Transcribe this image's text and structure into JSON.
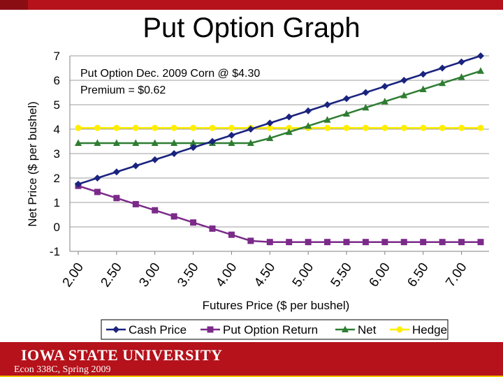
{
  "slide": {
    "title": "Put Option Graph",
    "university": "IOWA STATE UNIVERSITY",
    "course": "Econ 338C, Spring 2009",
    "brand_color": "#b5121b",
    "accent_color": "#f2c400"
  },
  "chart_data": {
    "type": "line",
    "title": "",
    "annotation_lines": [
      "Put Option Dec. 2009 Corn @ $4.30",
      "Premium = $0.62"
    ],
    "xlabel": "Futures Price ($ per bushel)",
    "ylabel": "Net Price ($ per bushel)",
    "ylim": [
      -1,
      7
    ],
    "yticks": [
      -1,
      0,
      1,
      2,
      3,
      4,
      5,
      6,
      7
    ],
    "x": [
      2.0,
      2.25,
      2.5,
      2.75,
      3.0,
      3.25,
      3.5,
      3.75,
      4.0,
      4.25,
      4.5,
      4.75,
      5.0,
      5.25,
      5.5,
      5.75,
      6.0,
      6.25,
      6.5,
      6.75,
      7.0,
      7.25
    ],
    "xlim": [
      2.0,
      7.25
    ],
    "xtick_values": [
      2.0,
      2.5,
      3.0,
      3.5,
      4.0,
      4.5,
      5.0,
      5.5,
      6.0,
      6.5,
      7.0
    ],
    "xtick_labels": [
      "2.00",
      "2.50",
      "3.00",
      "3.50",
      "4.00",
      "4.50",
      "5.00",
      "5.50",
      "6.00",
      "6.50",
      "7.00"
    ],
    "legend_position": "bottom",
    "series": [
      {
        "name": "Cash Price",
        "color": "#1a237e",
        "marker": "diamond",
        "values": [
          1.75,
          2.0,
          2.25,
          2.5,
          2.75,
          3.0,
          3.25,
          3.5,
          3.75,
          4.0,
          4.25,
          4.5,
          4.75,
          5.0,
          5.25,
          5.5,
          5.75,
          6.0,
          6.25,
          6.5,
          6.75,
          7.0
        ]
      },
      {
        "name": "Put Option Return",
        "color": "#7b2a8a",
        "marker": "square",
        "values": [
          1.68,
          1.43,
          1.18,
          0.93,
          0.68,
          0.43,
          0.18,
          -0.07,
          -0.32,
          -0.57,
          -0.62,
          -0.62,
          -0.62,
          -0.62,
          -0.62,
          -0.62,
          -0.62,
          -0.62,
          -0.62,
          -0.62,
          -0.62,
          -0.62
        ]
      },
      {
        "name": "Net",
        "color": "#2e7d32",
        "marker": "triangle",
        "values": [
          3.43,
          3.43,
          3.43,
          3.43,
          3.43,
          3.43,
          3.43,
          3.43,
          3.43,
          3.43,
          3.63,
          3.88,
          4.13,
          4.38,
          4.63,
          4.88,
          5.13,
          5.38,
          5.63,
          5.88,
          6.13,
          6.38
        ]
      },
      {
        "name": "Hedge",
        "color": "#ffee00",
        "marker": "circle",
        "values": [
          4.05,
          4.05,
          4.05,
          4.05,
          4.05,
          4.05,
          4.05,
          4.05,
          4.05,
          4.05,
          4.05,
          4.05,
          4.05,
          4.05,
          4.05,
          4.05,
          4.05,
          4.05,
          4.05,
          4.05,
          4.05,
          4.05
        ]
      }
    ]
  }
}
